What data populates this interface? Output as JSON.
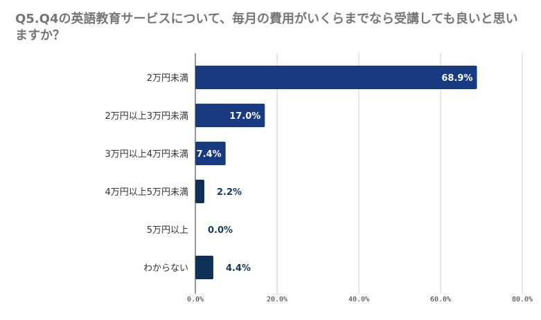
{
  "chart_data": {
    "type": "bar",
    "orientation": "horizontal",
    "title": "Q5.Q4の英語教育サービスについて、毎月の費用がいくらまでなら受講しても良いと思いますか？",
    "categories": [
      "2万円未満",
      "2万円以上3万円未満",
      "3万円以上4万円未満",
      "4万円以上5万円未満",
      "5万円以上",
      "わからない"
    ],
    "values": [
      68.9,
      17.0,
      7.4,
      2.2,
      0.0,
      4.4
    ],
    "value_labels": [
      "68.9%",
      "17.0%",
      "7.4%",
      "2.2%",
      "0.0%",
      "4.4%"
    ],
    "x_ticks": [
      "0.0%",
      "20.0%",
      "40.0%",
      "60.0%",
      "80.0%"
    ],
    "xlim": [
      0,
      80
    ],
    "grid": true,
    "colors": {
      "bars": [
        "#173a80",
        "#173a80",
        "#173a80",
        "#0f3057",
        "#0f3057",
        "#0f3057"
      ],
      "label_inside": "#ffffff",
      "label_outside": "#173a60",
      "grid": "#cccccc",
      "axis": "#333333"
    }
  }
}
